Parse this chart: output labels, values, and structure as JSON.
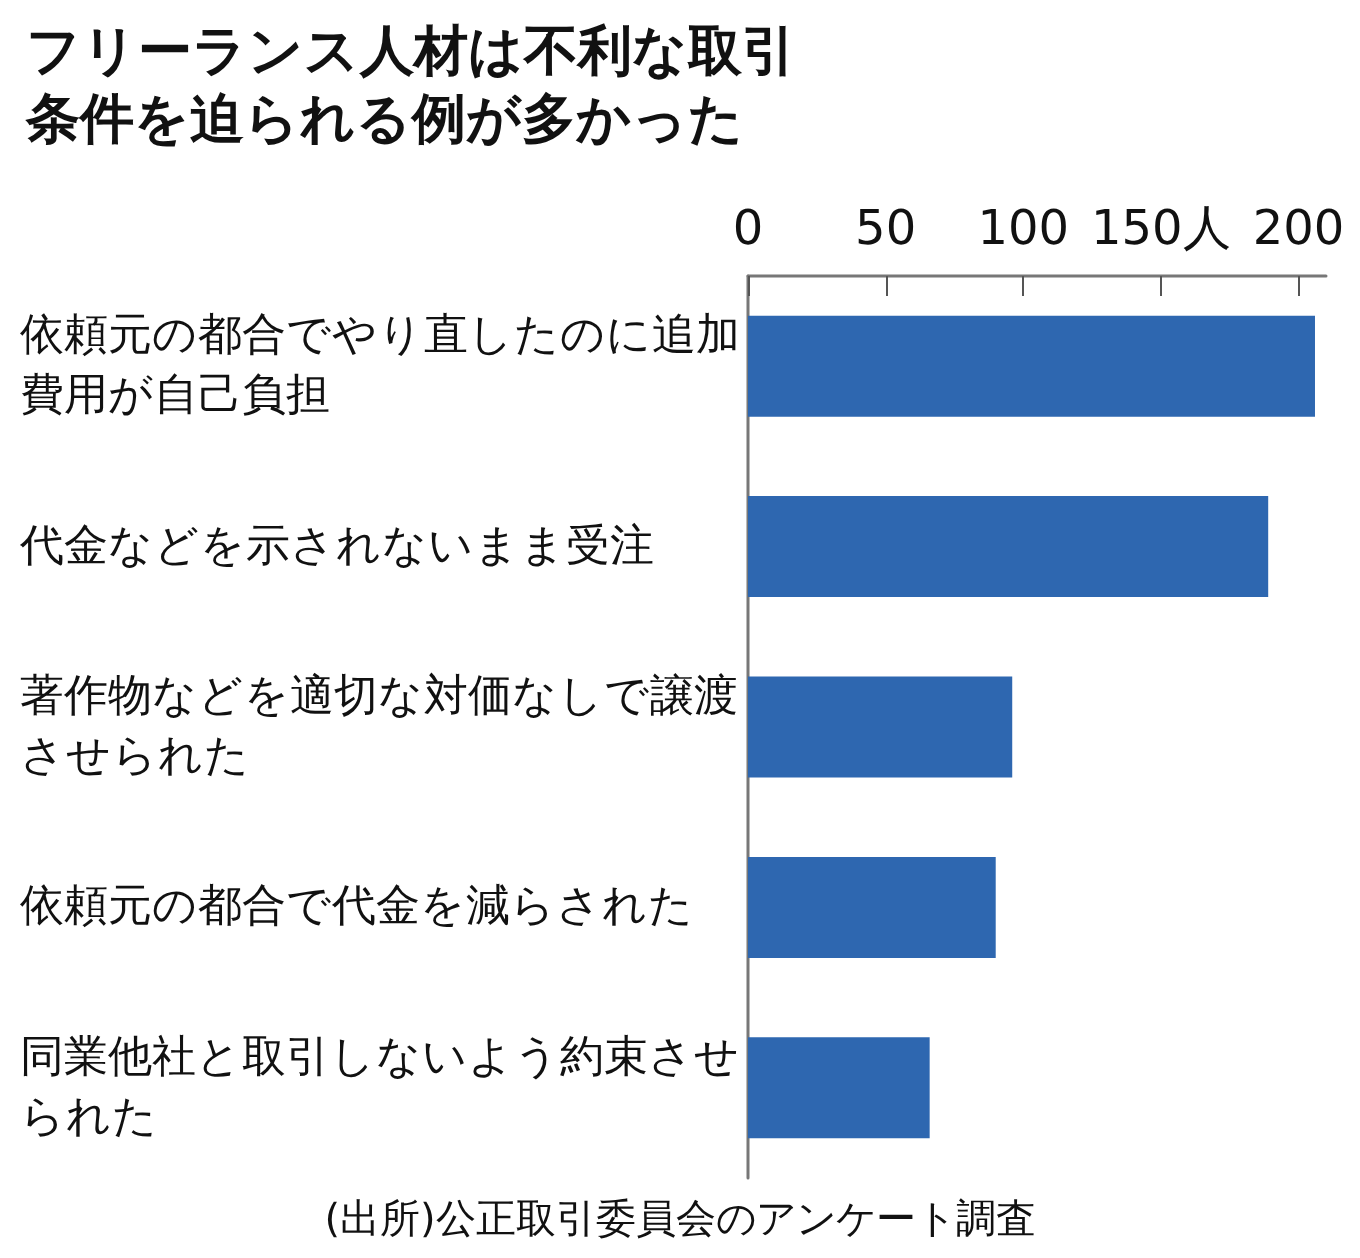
{
  "chart_data": {
    "type": "bar",
    "orientation": "horizontal",
    "title": "フリーランス人材は不利な取引条件を迫られる例が多かった",
    "categories": [
      "依頼元の都合でやり直したのに追加費用が自己負担",
      "代金などを示されないまま受注",
      "著作物などを適切な対価なしで譲渡させられた",
      "依頼元の都合で代金を減らされた",
      "同業他社と取引しないよう約束させられた"
    ],
    "values": [
      206,
      189,
      96,
      90,
      66
    ],
    "color": "#2e67b0",
    "xlim": [
      0,
      210
    ],
    "xticks": [
      0,
      50,
      100,
      {
        "value": 150,
        "label": "150人"
      },
      200
    ],
    "grid": false,
    "annotations": [
      "(出所)公正取引委員会のアンケート調査"
    ]
  }
}
